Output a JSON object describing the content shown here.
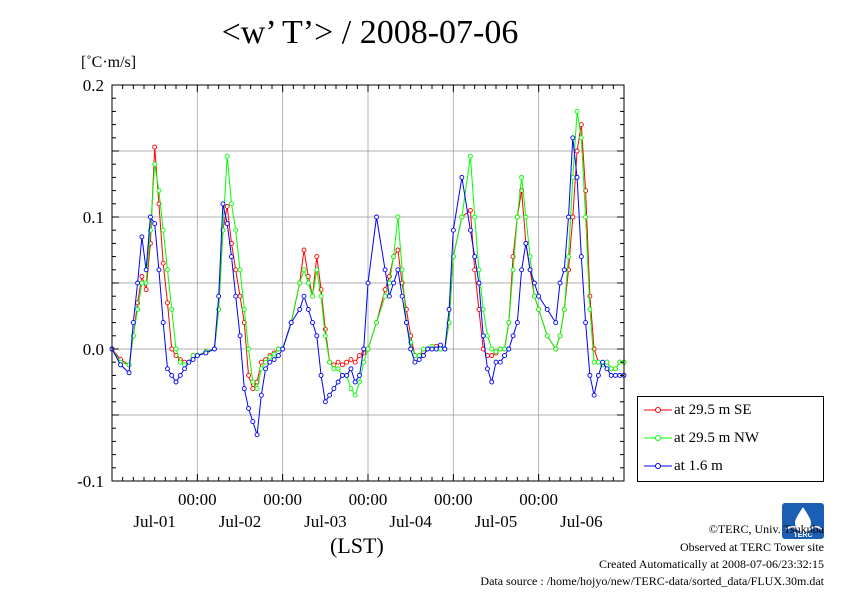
{
  "chart_data": {
    "type": "line",
    "title": "<w’ T’> / 2008-07-06",
    "unit": "[˚C·m/s]",
    "xlabel": "(LST)",
    "ylim": [
      -0.1,
      0.2
    ],
    "yticks": [
      "0.2",
      "0.1",
      "0.0",
      "-0.1"
    ],
    "day_labels": [
      "Jul-01",
      "Jul-02",
      "Jul-03",
      "Jul-04",
      "Jul-05",
      "Jul-06"
    ],
    "midnight_label": "00:00",
    "midnight_labels": [
      "00:00",
      "00:00",
      "00:00",
      "00:00",
      "00:00"
    ],
    "xlim_days": [
      0,
      6
    ],
    "grid": true,
    "legend_position": "bottom-right",
    "series": [
      {
        "name": "at 29.5 m SE",
        "color": "#ff0000",
        "x": [
          0.0,
          0.1,
          0.2,
          0.25,
          0.3,
          0.35,
          0.4,
          0.45,
          0.5,
          0.55,
          0.6,
          0.65,
          0.7,
          0.75,
          0.8,
          0.85,
          0.9,
          0.95,
          1.0,
          1.1,
          1.2,
          1.25,
          1.3,
          1.35,
          1.4,
          1.45,
          1.5,
          1.55,
          1.6,
          1.65,
          1.7,
          1.75,
          1.8,
          1.85,
          1.9,
          1.95,
          2.0,
          2.1,
          2.2,
          2.25,
          2.3,
          2.35,
          2.4,
          2.45,
          2.5,
          2.55,
          2.6,
          2.65,
          2.7,
          2.75,
          2.8,
          2.85,
          2.9,
          2.95,
          3.0,
          3.1,
          3.2,
          3.25,
          3.3,
          3.35,
          3.4,
          3.45,
          3.5,
          3.55,
          3.6,
          3.65,
          3.7,
          3.75,
          3.8,
          3.85,
          3.9,
          3.95,
          4.0,
          4.1,
          4.2,
          4.25,
          4.3,
          4.35,
          4.4,
          4.45,
          4.5,
          4.55,
          4.6,
          4.65,
          4.7,
          4.75,
          4.8,
          4.85,
          4.9,
          4.95,
          5.0,
          5.1,
          5.2,
          5.25,
          5.3,
          5.35,
          5.4,
          5.45,
          5.5,
          5.55,
          5.6,
          5.65,
          5.7,
          5.75,
          5.8,
          5.85,
          5.9,
          5.95,
          6.0
        ],
        "y": [
          0.0,
          -0.008,
          -0.012,
          0.01,
          0.035,
          0.055,
          0.045,
          0.08,
          0.153,
          0.11,
          0.065,
          0.035,
          0.0,
          -0.005,
          -0.008,
          -0.01,
          -0.01,
          -0.005,
          -0.005,
          -0.002,
          0.0,
          0.03,
          0.09,
          0.108,
          0.08,
          0.06,
          0.04,
          0.02,
          -0.02,
          -0.03,
          -0.025,
          -0.01,
          -0.008,
          -0.005,
          -0.003,
          0.0,
          0.0,
          0.02,
          0.05,
          0.075,
          0.055,
          0.04,
          0.07,
          0.045,
          0.015,
          -0.01,
          -0.012,
          -0.01,
          -0.012,
          -0.01,
          -0.008,
          -0.01,
          -0.005,
          -0.003,
          0.0,
          0.02,
          0.045,
          0.055,
          0.07,
          0.075,
          0.05,
          0.03,
          0.01,
          -0.005,
          -0.005,
          -0.002,
          0.0,
          0.0,
          0.002,
          0.0,
          0.0,
          0.02,
          0.07,
          0.1,
          0.105,
          0.06,
          0.03,
          0.0,
          -0.005,
          -0.005,
          -0.003,
          0.0,
          0.0,
          0.02,
          0.07,
          0.1,
          0.12,
          0.08,
          0.06,
          0.04,
          0.03,
          0.01,
          0.0,
          0.01,
          0.03,
          0.06,
          0.1,
          0.15,
          0.17,
          0.12,
          0.04,
          0.0,
          -0.01,
          -0.012,
          -0.01,
          -0.015,
          -0.015,
          -0.01,
          -0.01
        ]
      },
      {
        "name": "at 29.5 m NW",
        "color": "#00ff00",
        "x": [
          0.0,
          0.1,
          0.2,
          0.25,
          0.3,
          0.35,
          0.4,
          0.45,
          0.5,
          0.55,
          0.6,
          0.65,
          0.7,
          0.75,
          0.8,
          0.85,
          0.9,
          0.95,
          1.0,
          1.1,
          1.2,
          1.25,
          1.3,
          1.35,
          1.4,
          1.45,
          1.5,
          1.55,
          1.6,
          1.65,
          1.7,
          1.75,
          1.8,
          1.85,
          1.9,
          1.95,
          2.0,
          2.1,
          2.2,
          2.25,
          2.3,
          2.35,
          2.4,
          2.45,
          2.5,
          2.55,
          2.6,
          2.65,
          2.7,
          2.75,
          2.8,
          2.85,
          2.9,
          2.95,
          3.0,
          3.1,
          3.2,
          3.25,
          3.3,
          3.35,
          3.4,
          3.45,
          3.5,
          3.55,
          3.6,
          3.65,
          3.7,
          3.75,
          3.8,
          3.85,
          3.9,
          3.95,
          4.0,
          4.1,
          4.2,
          4.25,
          4.3,
          4.35,
          4.4,
          4.45,
          4.5,
          4.55,
          4.6,
          4.65,
          4.7,
          4.75,
          4.8,
          4.85,
          4.9,
          4.95,
          5.0,
          5.1,
          5.2,
          5.25,
          5.3,
          5.35,
          5.4,
          5.45,
          5.5,
          5.55,
          5.6,
          5.65,
          5.7,
          5.75,
          5.8,
          5.85,
          5.9,
          5.95,
          6.0
        ],
        "y": [
          0.0,
          -0.01,
          -0.012,
          0.01,
          0.03,
          0.05,
          0.05,
          0.09,
          0.14,
          0.12,
          0.09,
          0.06,
          0.03,
          0.0,
          -0.01,
          -0.012,
          -0.01,
          -0.005,
          -0.005,
          -0.002,
          0.0,
          0.03,
          0.09,
          0.146,
          0.11,
          0.09,
          0.06,
          0.03,
          0.0,
          -0.025,
          -0.03,
          -0.015,
          -0.01,
          -0.006,
          -0.004,
          0.0,
          0.0,
          0.02,
          0.05,
          0.06,
          0.05,
          0.04,
          0.06,
          0.04,
          0.01,
          -0.01,
          -0.015,
          -0.015,
          -0.02,
          -0.02,
          -0.03,
          -0.035,
          -0.025,
          -0.01,
          0.0,
          0.02,
          0.04,
          0.05,
          0.07,
          0.1,
          0.06,
          0.02,
          0.005,
          -0.005,
          -0.005,
          0.0,
          0.0,
          0.002,
          0.0,
          0.0,
          0.0,
          0.02,
          0.07,
          0.1,
          0.146,
          0.1,
          0.06,
          0.03,
          0.01,
          0.0,
          -0.002,
          0.0,
          0.0,
          0.02,
          0.06,
          0.1,
          0.13,
          0.1,
          0.07,
          0.04,
          0.03,
          0.01,
          0.0,
          0.01,
          0.03,
          0.07,
          0.13,
          0.18,
          0.16,
          0.1,
          0.03,
          -0.01,
          -0.01,
          -0.012,
          -0.01,
          -0.015,
          -0.015,
          -0.01,
          -0.01
        ]
      },
      {
        "name": "at 1.6 m",
        "color": "#0000ff",
        "x": [
          0.0,
          0.1,
          0.2,
          0.25,
          0.3,
          0.35,
          0.4,
          0.45,
          0.5,
          0.55,
          0.6,
          0.65,
          0.7,
          0.75,
          0.8,
          0.85,
          0.9,
          0.95,
          1.0,
          1.1,
          1.2,
          1.25,
          1.3,
          1.35,
          1.4,
          1.45,
          1.5,
          1.55,
          1.6,
          1.65,
          1.7,
          1.75,
          1.8,
          1.85,
          1.9,
          1.95,
          2.0,
          2.1,
          2.2,
          2.25,
          2.3,
          2.35,
          2.4,
          2.45,
          2.5,
          2.55,
          2.6,
          2.65,
          2.7,
          2.75,
          2.8,
          2.85,
          2.9,
          2.95,
          3.0,
          3.1,
          3.2,
          3.25,
          3.3,
          3.35,
          3.4,
          3.45,
          3.5,
          3.55,
          3.6,
          3.65,
          3.7,
          3.75,
          3.8,
          3.85,
          3.9,
          3.95,
          4.0,
          4.1,
          4.2,
          4.25,
          4.3,
          4.35,
          4.4,
          4.45,
          4.5,
          4.55,
          4.6,
          4.65,
          4.7,
          4.75,
          4.8,
          4.85,
          4.9,
          4.95,
          5.0,
          5.1,
          5.2,
          5.25,
          5.3,
          5.35,
          5.4,
          5.45,
          5.5,
          5.55,
          5.6,
          5.65,
          5.7,
          5.75,
          5.8,
          5.85,
          5.9,
          5.95,
          6.0
        ],
        "y": [
          0.0,
          -0.012,
          -0.018,
          0.02,
          0.05,
          0.085,
          0.06,
          0.1,
          0.095,
          0.06,
          0.02,
          -0.015,
          -0.02,
          -0.025,
          -0.02,
          -0.015,
          -0.01,
          -0.008,
          -0.005,
          -0.003,
          0.0,
          0.04,
          0.11,
          0.095,
          0.07,
          0.04,
          0.01,
          -0.03,
          -0.045,
          -0.055,
          -0.065,
          -0.035,
          -0.015,
          -0.01,
          -0.008,
          -0.005,
          0.0,
          0.02,
          0.03,
          0.04,
          0.03,
          0.02,
          0.01,
          -0.02,
          -0.04,
          -0.035,
          -0.03,
          -0.025,
          -0.02,
          -0.02,
          -0.015,
          -0.025,
          -0.02,
          0.0,
          0.05,
          0.1,
          0.06,
          0.04,
          0.05,
          0.06,
          0.04,
          0.02,
          0.0,
          -0.01,
          -0.008,
          -0.005,
          0.0,
          0.0,
          0.0,
          0.003,
          0.0,
          0.03,
          0.09,
          0.13,
          0.09,
          0.07,
          0.05,
          0.01,
          -0.015,
          -0.025,
          -0.01,
          -0.01,
          -0.005,
          0.0,
          0.01,
          0.02,
          0.06,
          0.08,
          0.06,
          0.05,
          0.04,
          0.03,
          0.02,
          0.05,
          0.06,
          0.1,
          0.16,
          0.13,
          0.07,
          0.02,
          -0.02,
          -0.035,
          -0.02,
          -0.01,
          -0.015,
          -0.02,
          -0.02,
          -0.02,
          -0.02
        ]
      }
    ]
  },
  "credits": {
    "copyright": "©TERC, Univ. Tsukuba",
    "site": "Observed at TERC Tower site",
    "created": "Created Automatically at 2008-07-06/23:32:15",
    "source": "Data source : /home/hojyo/new/TERC-data/sorted_data/FLUX.30m.dat",
    "logo_text": "TERC"
  }
}
